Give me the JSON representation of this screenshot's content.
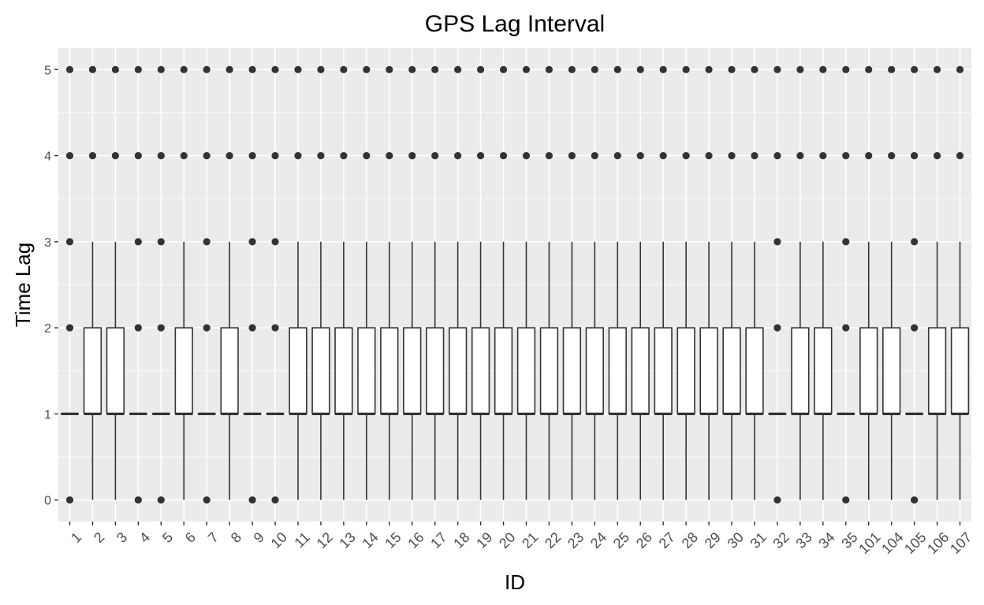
{
  "chart_data": {
    "type": "boxplot",
    "title": "GPS Lag Interval",
    "xlabel": "ID",
    "ylabel": "Time Lag",
    "ylim": [
      -0.25,
      5.25
    ],
    "yticks": [
      0,
      1,
      2,
      3,
      4,
      5
    ],
    "grid": true,
    "legend": "none",
    "colors": {
      "panel": "#ebebeb",
      "grid": "#ffffff",
      "box_fill": "#ffffff",
      "box_stroke": "#333333",
      "outlier": "#333333"
    },
    "categories": [
      "1",
      "2",
      "3",
      "4",
      "5",
      "6",
      "7",
      "8",
      "9",
      "10",
      "11",
      "12",
      "13",
      "14",
      "15",
      "16",
      "17",
      "18",
      "19",
      "20",
      "21",
      "22",
      "23",
      "24",
      "25",
      "26",
      "27",
      "28",
      "29",
      "30",
      "31",
      "32",
      "33",
      "34",
      "35",
      "101",
      "104",
      "105",
      "106",
      "107"
    ],
    "boxes": [
      {
        "id": "1",
        "q1": 1,
        "median": 1,
        "q3": 1,
        "whisker_low": 1,
        "whisker_high": 1,
        "outliers": [
          0,
          2,
          3,
          4,
          5
        ]
      },
      {
        "id": "2",
        "q1": 1,
        "median": 1,
        "q3": 2,
        "whisker_low": 0,
        "whisker_high": 3,
        "outliers": [
          4,
          5
        ]
      },
      {
        "id": "3",
        "q1": 1,
        "median": 1,
        "q3": 2,
        "whisker_low": 0,
        "whisker_high": 3,
        "outliers": [
          4,
          5
        ]
      },
      {
        "id": "4",
        "q1": 1,
        "median": 1,
        "q3": 1,
        "whisker_low": 1,
        "whisker_high": 1,
        "outliers": [
          0,
          2,
          3,
          4,
          5
        ]
      },
      {
        "id": "5",
        "q1": 1,
        "median": 1,
        "q3": 1,
        "whisker_low": 1,
        "whisker_high": 1,
        "outliers": [
          0,
          2,
          3,
          4,
          5
        ]
      },
      {
        "id": "6",
        "q1": 1,
        "median": 1,
        "q3": 2,
        "whisker_low": 0,
        "whisker_high": 3,
        "outliers": [
          4,
          5
        ]
      },
      {
        "id": "7",
        "q1": 1,
        "median": 1,
        "q3": 1,
        "whisker_low": 1,
        "whisker_high": 1,
        "outliers": [
          0,
          2,
          3,
          4,
          5
        ]
      },
      {
        "id": "8",
        "q1": 1,
        "median": 1,
        "q3": 2,
        "whisker_low": 0,
        "whisker_high": 3,
        "outliers": [
          4,
          5
        ]
      },
      {
        "id": "9",
        "q1": 1,
        "median": 1,
        "q3": 1,
        "whisker_low": 1,
        "whisker_high": 1,
        "outliers": [
          0,
          2,
          3,
          4,
          5
        ]
      },
      {
        "id": "10",
        "q1": 1,
        "median": 1,
        "q3": 1,
        "whisker_low": 1,
        "whisker_high": 1,
        "outliers": [
          0,
          2,
          3,
          4,
          5
        ]
      },
      {
        "id": "11",
        "q1": 1,
        "median": 1,
        "q3": 2,
        "whisker_low": 0,
        "whisker_high": 3,
        "outliers": [
          4,
          5
        ]
      },
      {
        "id": "12",
        "q1": 1,
        "median": 1,
        "q3": 2,
        "whisker_low": 0,
        "whisker_high": 3,
        "outliers": [
          4,
          5
        ]
      },
      {
        "id": "13",
        "q1": 1,
        "median": 1,
        "q3": 2,
        "whisker_low": 0,
        "whisker_high": 3,
        "outliers": [
          4,
          5
        ]
      },
      {
        "id": "14",
        "q1": 1,
        "median": 1,
        "q3": 2,
        "whisker_low": 0,
        "whisker_high": 3,
        "outliers": [
          4,
          5
        ]
      },
      {
        "id": "15",
        "q1": 1,
        "median": 1,
        "q3": 2,
        "whisker_low": 0,
        "whisker_high": 3,
        "outliers": [
          4,
          5
        ]
      },
      {
        "id": "16",
        "q1": 1,
        "median": 1,
        "q3": 2,
        "whisker_low": 0,
        "whisker_high": 3,
        "outliers": [
          4,
          5
        ]
      },
      {
        "id": "17",
        "q1": 1,
        "median": 1,
        "q3": 2,
        "whisker_low": 0,
        "whisker_high": 3,
        "outliers": [
          4,
          5
        ]
      },
      {
        "id": "18",
        "q1": 1,
        "median": 1,
        "q3": 2,
        "whisker_low": 0,
        "whisker_high": 3,
        "outliers": [
          4,
          5
        ]
      },
      {
        "id": "19",
        "q1": 1,
        "median": 1,
        "q3": 2,
        "whisker_low": 0,
        "whisker_high": 3,
        "outliers": [
          4,
          5
        ]
      },
      {
        "id": "20",
        "q1": 1,
        "median": 1,
        "q3": 2,
        "whisker_low": 0,
        "whisker_high": 3,
        "outliers": [
          4,
          5
        ]
      },
      {
        "id": "21",
        "q1": 1,
        "median": 1,
        "q3": 2,
        "whisker_low": 0,
        "whisker_high": 3,
        "outliers": [
          4,
          5
        ]
      },
      {
        "id": "22",
        "q1": 1,
        "median": 1,
        "q3": 2,
        "whisker_low": 0,
        "whisker_high": 3,
        "outliers": [
          4,
          5
        ]
      },
      {
        "id": "23",
        "q1": 1,
        "median": 1,
        "q3": 2,
        "whisker_low": 0,
        "whisker_high": 3,
        "outliers": [
          4,
          5
        ]
      },
      {
        "id": "24",
        "q1": 1,
        "median": 1,
        "q3": 2,
        "whisker_low": 0,
        "whisker_high": 3,
        "outliers": [
          4,
          5
        ]
      },
      {
        "id": "25",
        "q1": 1,
        "median": 1,
        "q3": 2,
        "whisker_low": 0,
        "whisker_high": 3,
        "outliers": [
          4,
          5
        ]
      },
      {
        "id": "26",
        "q1": 1,
        "median": 1,
        "q3": 2,
        "whisker_low": 0,
        "whisker_high": 3,
        "outliers": [
          4,
          5
        ]
      },
      {
        "id": "27",
        "q1": 1,
        "median": 1,
        "q3": 2,
        "whisker_low": 0,
        "whisker_high": 3,
        "outliers": [
          4,
          5
        ]
      },
      {
        "id": "28",
        "q1": 1,
        "median": 1,
        "q3": 2,
        "whisker_low": 0,
        "whisker_high": 3,
        "outliers": [
          4,
          5
        ]
      },
      {
        "id": "29",
        "q1": 1,
        "median": 1,
        "q3": 2,
        "whisker_low": 0,
        "whisker_high": 3,
        "outliers": [
          4,
          5
        ]
      },
      {
        "id": "30",
        "q1": 1,
        "median": 1,
        "q3": 2,
        "whisker_low": 0,
        "whisker_high": 3,
        "outliers": [
          4,
          5
        ]
      },
      {
        "id": "31",
        "q1": 1,
        "median": 1,
        "q3": 2,
        "whisker_low": 0,
        "whisker_high": 3,
        "outliers": [
          4,
          5
        ]
      },
      {
        "id": "32",
        "q1": 1,
        "median": 1,
        "q3": 1,
        "whisker_low": 1,
        "whisker_high": 1,
        "outliers": [
          0,
          2,
          3,
          4,
          5
        ]
      },
      {
        "id": "33",
        "q1": 1,
        "median": 1,
        "q3": 2,
        "whisker_low": 0,
        "whisker_high": 3,
        "outliers": [
          4,
          5
        ]
      },
      {
        "id": "34",
        "q1": 1,
        "median": 1,
        "q3": 2,
        "whisker_low": 0,
        "whisker_high": 3,
        "outliers": [
          4,
          5
        ]
      },
      {
        "id": "35",
        "q1": 1,
        "median": 1,
        "q3": 1,
        "whisker_low": 1,
        "whisker_high": 1,
        "outliers": [
          0,
          2,
          3,
          4,
          5
        ]
      },
      {
        "id": "101",
        "q1": 1,
        "median": 1,
        "q3": 2,
        "whisker_low": 0,
        "whisker_high": 3,
        "outliers": [
          4,
          5
        ]
      },
      {
        "id": "104",
        "q1": 1,
        "median": 1,
        "q3": 2,
        "whisker_low": 0,
        "whisker_high": 3,
        "outliers": [
          4,
          5
        ]
      },
      {
        "id": "105",
        "q1": 1,
        "median": 1,
        "q3": 1,
        "whisker_low": 1,
        "whisker_high": 1,
        "outliers": [
          0,
          2,
          3,
          4,
          5
        ]
      },
      {
        "id": "106",
        "q1": 1,
        "median": 1,
        "q3": 2,
        "whisker_low": 0,
        "whisker_high": 3,
        "outliers": [
          4,
          5
        ]
      },
      {
        "id": "107",
        "q1": 1,
        "median": 1,
        "q3": 2,
        "whisker_low": 0,
        "whisker_high": 3,
        "outliers": [
          4,
          5
        ]
      }
    ]
  }
}
